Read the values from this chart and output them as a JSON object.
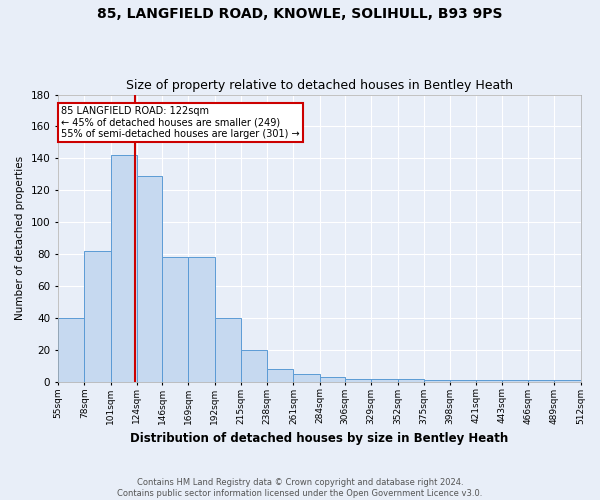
{
  "title": "85, LANGFIELD ROAD, KNOWLE, SOLIHULL, B93 9PS",
  "subtitle": "Size of property relative to detached houses in Bentley Heath",
  "xlabel": "Distribution of detached houses by size in Bentley Heath",
  "ylabel": "Number of detached properties",
  "footer_line1": "Contains HM Land Registry data © Crown copyright and database right 2024.",
  "footer_line2": "Contains public sector information licensed under the Open Government Licence v3.0.",
  "bins": [
    55,
    78,
    101,
    124,
    146,
    169,
    192,
    215,
    238,
    261,
    284,
    306,
    329,
    352,
    375,
    398,
    421,
    443,
    466,
    489,
    512
  ],
  "bar_heights": [
    40,
    82,
    142,
    129,
    78,
    78,
    40,
    20,
    8,
    5,
    3,
    2,
    2,
    2,
    1,
    1,
    1,
    1,
    1,
    1
  ],
  "bar_color": "#c6d9f0",
  "bar_edge_color": "#5b9bd5",
  "property_line_x": 122,
  "annotation_text_line1": "85 LANGFIELD ROAD: 122sqm",
  "annotation_text_line2": "← 45% of detached houses are smaller (249)",
  "annotation_text_line3": "55% of semi-detached houses are larger (301) →",
  "annotation_box_color": "#ffffff",
  "annotation_box_edge_color": "#cc0000",
  "line_color": "#cc0000",
  "ylim": [
    0,
    180
  ],
  "yticks": [
    0,
    20,
    40,
    60,
    80,
    100,
    120,
    140,
    160,
    180
  ],
  "background_color": "#e8eef8",
  "grid_color": "#ffffff",
  "title_fontsize": 10,
  "subtitle_fontsize": 9
}
